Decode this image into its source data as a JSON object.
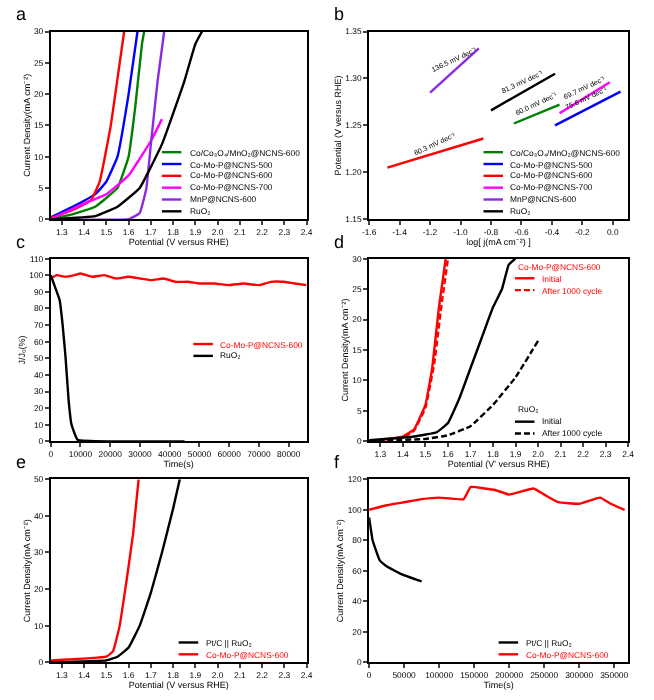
{
  "chart_data": [
    {
      "type": "line",
      "title": "a",
      "xlabel": "Potential (V versus RHE)",
      "ylabel": "Current Density(mA cm⁻²)",
      "xlim": [
        1.25,
        2.4
      ],
      "xticks": [
        1.3,
        1.4,
        1.5,
        1.6,
        1.7,
        1.8,
        1.9,
        {
          "value": 2.0,
          "label": "2.0"
        },
        2.1,
        2.2,
        2.3,
        2.4
      ],
      "ylim": [
        0,
        30
      ],
      "yticks": [
        0,
        5,
        10,
        15,
        20,
        25,
        30
      ],
      "legend": "bottom right",
      "series": [
        {
          "name": "Co/Co₃O₄/MnO₂@NCNS-600",
          "color": "#008000",
          "x": [
            1.25,
            1.35,
            1.45,
            1.55,
            1.6,
            1.63,
            1.66,
            1.67
          ],
          "values": [
            0,
            0.8,
            2,
            5,
            10,
            18,
            28,
            30
          ]
        },
        {
          "name": "Co-Mo-P@NCNS-500",
          "color": "#0000ff",
          "x": [
            1.25,
            1.35,
            1.45,
            1.5,
            1.55,
            1.6,
            1.64
          ],
          "values": [
            0.3,
            2,
            4,
            6,
            10,
            20,
            30
          ]
        },
        {
          "name": "Co-Mo-P@NCNS-600",
          "color": "#ff0000",
          "x": [
            1.25,
            1.35,
            1.43,
            1.47,
            1.52,
            1.56,
            1.58
          ],
          "values": [
            0.2,
            1.5,
            3,
            6,
            15,
            25,
            30
          ]
        },
        {
          "name": "Co-Mo-P@NCNS-700",
          "color": "#ff00ff",
          "x": [
            1.25,
            1.4,
            1.5,
            1.6,
            1.7,
            1.75
          ],
          "values": [
            0,
            2.5,
            4,
            7,
            12.5,
            16
          ]
        },
        {
          "name": "MnP@NCNS-600",
          "color": "#8a2be2",
          "x": [
            1.25,
            1.6,
            1.65,
            1.68,
            1.7,
            1.73,
            1.76
          ],
          "values": [
            0,
            0,
            1,
            5,
            12,
            22,
            30
          ]
        },
        {
          "name": "RuO₂",
          "color": "#000000",
          "x": [
            1.25,
            1.45,
            1.55,
            1.65,
            1.75,
            1.85,
            1.9,
            1.93
          ],
          "values": [
            0,
            0.5,
            2,
            5,
            12,
            22,
            28,
            30
          ]
        }
      ]
    },
    {
      "type": "line",
      "title": "b",
      "xlabel": "log[ j(mA cm⁻²) ]",
      "ylabel": "Potential (V versus RHE)",
      "xlim": [
        -1.6,
        0.1
      ],
      "xticks": [
        -1.6,
        -1.4,
        -1.2,
        {
          "value": -1.0,
          "label": "-1.0"
        },
        -0.8,
        -0.6,
        -0.4,
        -0.2,
        {
          "value": 0.0,
          "label": "0.0"
        }
      ],
      "ylim": [
        1.15,
        1.35
      ],
      "yticks": [
        1.15,
        {
          "value": 1.2,
          "label": "1.20"
        },
        1.25,
        {
          "value": 1.3,
          "label": "1.30"
        },
        1.35
      ],
      "legend": "bottom right",
      "series": [
        {
          "name": "Co/Co₃O₄/MnO₂@NCNS-600",
          "color": "#008000",
          "x": [
            -0.65,
            -0.35
          ],
          "values": [
            1.252,
            1.272
          ]
        },
        {
          "name": "Co-Mo-P@NCNS-500",
          "color": "#0000ff",
          "x": [
            -0.38,
            0.05
          ],
          "values": [
            1.25,
            1.286
          ]
        },
        {
          "name": "Co-Mo-P@NCNS-600",
          "color": "#ff0000",
          "x": [
            -1.48,
            -0.85
          ],
          "values": [
            1.205,
            1.236
          ]
        },
        {
          "name": "Co-Mo-P@NCNS-700",
          "color": "#ff00ff",
          "x": [
            -0.35,
            -0.02
          ],
          "values": [
            1.263,
            1.296
          ]
        },
        {
          "name": "MnP@NCNS-600",
          "color": "#8a2be2",
          "x": [
            -1.2,
            -0.88
          ],
          "values": [
            1.285,
            1.332
          ]
        },
        {
          "name": "RuO₂",
          "color": "#000000",
          "x": [
            -0.8,
            -0.38
          ],
          "values": [
            1.266,
            1.305
          ]
        }
      ],
      "annotations": [
        {
          "text": "136.5 mV dec⁻¹",
          "x": -1.04,
          "y": 1.3085
        },
        {
          "text": "81.3 mV dec⁻¹",
          "x": -0.59,
          "y": 1.2855
        },
        {
          "text": "60.0 mV dec⁻¹",
          "x": -0.5,
          "y": 1.262
        },
        {
          "text": "69.7 mV dec⁻¹",
          "x": -0.185,
          "y": 1.2795
        },
        {
          "text": "75.6 mV dec⁻¹",
          "x": -0.165,
          "y": 1.268
        },
        {
          "text": "60.3 mV dec⁻¹",
          "x": -1.165,
          "y": 1.2205
        }
      ]
    },
    {
      "type": "line",
      "title": "c",
      "xlabel": "Time(s)",
      "ylabel": "J/J₀(%)",
      "xlim": [
        0,
        86000
      ],
      "xticks": [
        0,
        10000,
        20000,
        30000,
        40000,
        50000,
        60000,
        70000,
        80000
      ],
      "ylim": [
        0,
        110
      ],
      "yticks": [
        0,
        10,
        20,
        30,
        40,
        50,
        60,
        70,
        80,
        90,
        100,
        110
      ],
      "legend": "right",
      "series": [
        {
          "name": "Co-Mo-P@NCNS-600",
          "color": "#ff0000",
          "x": [
            0,
            2000,
            5000,
            8000,
            10000,
            14000,
            18000,
            22000,
            26000,
            30000,
            34000,
            38000,
            42000,
            46000,
            50000,
            55000,
            60000,
            65000,
            70000,
            74000,
            78000,
            82000,
            86000
          ],
          "values": [
            98,
            100,
            99,
            100,
            101,
            99,
            100,
            98,
            99,
            98,
            97,
            98,
            96,
            96,
            95,
            95,
            94,
            95,
            94,
            96,
            96,
            95,
            94
          ]
        },
        {
          "name": "RuO₂",
          "color": "#000000",
          "x": [
            0,
            1000,
            3000,
            4000,
            5000,
            6000,
            7000,
            9000,
            20000,
            45000
          ],
          "values": [
            100,
            95,
            85,
            70,
            50,
            25,
            10,
            1,
            0,
            0
          ]
        }
      ]
    },
    {
      "type": "line",
      "title": "d",
      "xlabel": "Potential (V' versus RHE)",
      "ylabel": "Current Density(mA cm⁻²)",
      "xlim": [
        1.25,
        2.4
      ],
      "xticks": [
        1.3,
        1.4,
        1.5,
        1.6,
        1.7,
        1.8,
        1.9,
        {
          "value": 2.0,
          "label": "2.0"
        },
        2.1,
        2.2,
        2.3,
        2.4
      ],
      "ylim": [
        0,
        30
      ],
      "yticks": [
        0,
        5,
        10,
        15,
        20,
        25,
        30
      ],
      "legend": "right",
      "annotations": [
        "Co-Mo-P@NCNS-600",
        "RuO₂"
      ],
      "series": [
        {
          "name": "Initial",
          "color": "#ff0000",
          "x": [
            1.25,
            1.4,
            1.45,
            1.5,
            1.53,
            1.56,
            1.59
          ],
          "values": [
            0,
            0.8,
            2,
            6,
            12,
            22,
            30
          ]
        },
        {
          "name": "After 1000 cycle",
          "color": "#ff0000",
          "line_style": "dashed",
          "x": [
            1.25,
            1.4,
            1.45,
            1.5,
            1.54,
            1.57,
            1.6
          ],
          "values": [
            0,
            0.6,
            1.8,
            5.5,
            13,
            22,
            30
          ]
        },
        {
          "name": "Initial",
          "color": "#000000",
          "x": [
            1.25,
            1.45,
            1.55,
            1.6,
            1.65,
            1.7,
            1.75,
            1.8,
            1.84,
            1.87,
            1.9
          ],
          "values": [
            0.2,
            0.8,
            1.5,
            3,
            7,
            12,
            17,
            22,
            25,
            29,
            30
          ]
        },
        {
          "name": "After 1000 cycle",
          "color": "#000000",
          "line_style": "dashed",
          "x": [
            1.25,
            1.5,
            1.6,
            1.7,
            1.8,
            1.9,
            2.0
          ],
          "values": [
            0.1,
            0.4,
            1,
            2.5,
            6,
            10.5,
            16.5
          ]
        }
      ]
    },
    {
      "type": "line",
      "title": "e",
      "xlabel": "Potential (V versus RHE)",
      "ylabel": "Current Density(mA cm⁻²)",
      "xlim": [
        1.25,
        2.4
      ],
      "xticks": [
        1.3,
        1.4,
        1.5,
        1.6,
        1.7,
        1.8,
        1.9,
        {
          "value": 2.0,
          "label": "2.0"
        },
        2.1,
        2.2,
        2.3,
        2.4
      ],
      "ylim": [
        0,
        50
      ],
      "yticks": [
        0,
        10,
        20,
        30,
        40,
        50
      ],
      "legend": "bottom right",
      "series": [
        {
          "name": "Pt/C || RuO₂",
          "color": "#000000",
          "x": [
            1.25,
            1.5,
            1.55,
            1.6,
            1.65,
            1.7,
            1.75,
            1.8,
            1.83
          ],
          "values": [
            0,
            0.5,
            1.5,
            4,
            10,
            19,
            30,
            42,
            50
          ]
        },
        {
          "name": "Co-Mo-P@NCNS-600",
          "color": "#ff0000",
          "x": [
            1.25,
            1.5,
            1.53,
            1.56,
            1.59,
            1.62,
            1.645
          ],
          "values": [
            0.5,
            1.5,
            3,
            10,
            22,
            35,
            50
          ]
        }
      ]
    },
    {
      "type": "line",
      "title": "f",
      "xlabel": "Time(s)",
      "ylabel": "Current Density(mA cm⁻²)",
      "xlim": [
        0,
        370000
      ],
      "xticks": [
        0,
        50000,
        100000,
        150000,
        200000,
        250000,
        300000,
        350000
      ],
      "ylim": [
        0,
        120
      ],
      "yticks": [
        0,
        20,
        40,
        60,
        80,
        100,
        120
      ],
      "legend": "bottom right",
      "series": [
        {
          "name": "Pt/C || RuO₂",
          "color": "#000000",
          "x": [
            0,
            5000,
            15000,
            25000,
            45000,
            75000
          ],
          "values": [
            95,
            80,
            67,
            63,
            58,
            53
          ]
        },
        {
          "name": "Co-Mo-P@NCNS-600",
          "color": "#ff0000",
          "x": [
            0,
            25000,
            50000,
            75000,
            100000,
            135000,
            145000,
            165000,
            180000,
            200000,
            235000,
            250000,
            270000,
            300000,
            330000,
            345000,
            365000
          ],
          "values": [
            100,
            103,
            105,
            107,
            108,
            107,
            115,
            114,
            113,
            110,
            114,
            110,
            105,
            104,
            108,
            104,
            100
          ]
        }
      ]
    }
  ]
}
